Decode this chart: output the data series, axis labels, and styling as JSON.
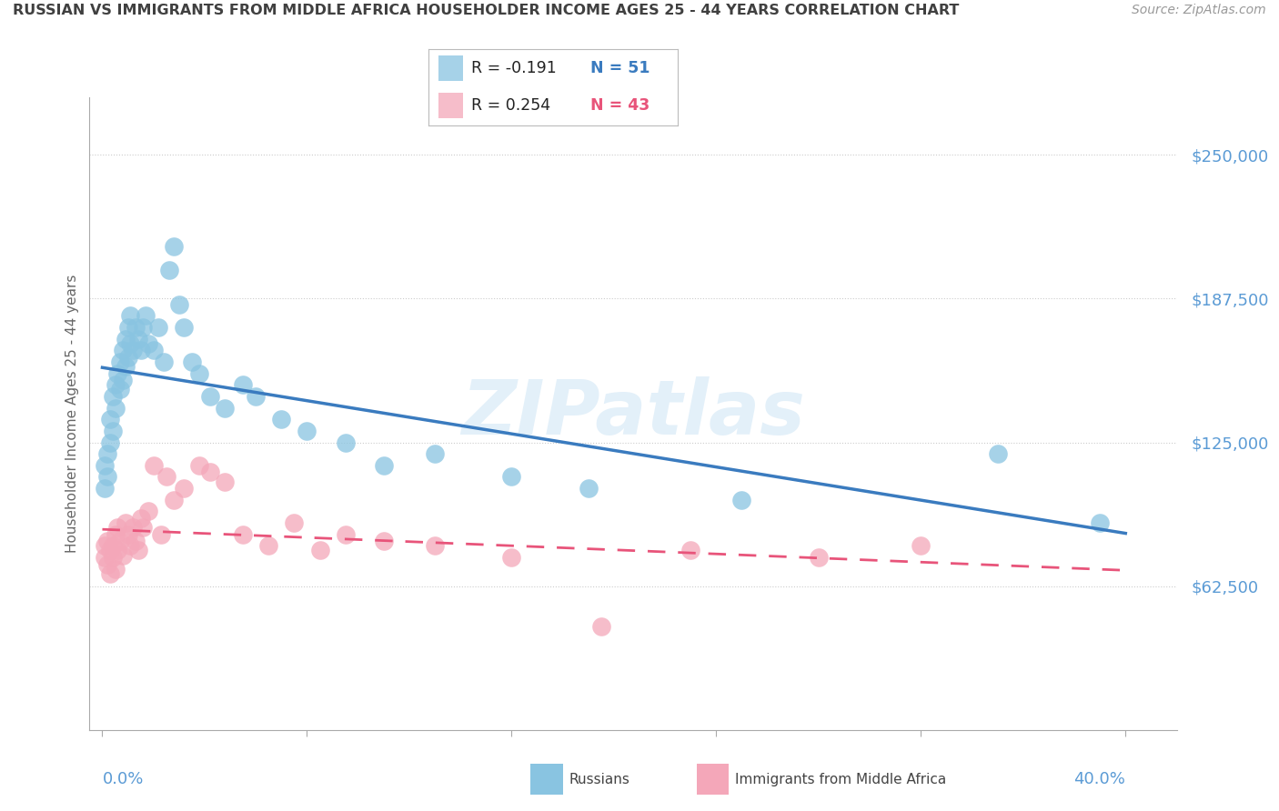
{
  "title": "RUSSIAN VS IMMIGRANTS FROM MIDDLE AFRICA HOUSEHOLDER INCOME AGES 25 - 44 YEARS CORRELATION CHART",
  "source": "Source: ZipAtlas.com",
  "ylabel": "Householder Income Ages 25 - 44 years",
  "ytick_labels": [
    "$62,500",
    "$125,000",
    "$187,500",
    "$250,000"
  ],
  "ytick_values": [
    62500,
    125000,
    187500,
    250000
  ],
  "ymin": 0,
  "ymax": 275000,
  "xmin": -0.005,
  "xmax": 0.42,
  "watermark": "ZIPatlas",
  "legend_russian_R": "R = -0.191",
  "legend_russian_N": "N = 51",
  "legend_immigrant_R": "R = 0.254",
  "legend_immigrant_N": "N = 43",
  "russian_color": "#89c4e1",
  "immigrant_color": "#f4a7b9",
  "russian_line_color": "#3a7bbf",
  "immigrant_line_color": "#e8547a",
  "axis_color": "#5b9bd5",
  "title_color": "#404040",
  "russian_scatter_x": [
    0.001,
    0.001,
    0.002,
    0.002,
    0.003,
    0.003,
    0.004,
    0.004,
    0.005,
    0.005,
    0.006,
    0.007,
    0.007,
    0.008,
    0.008,
    0.009,
    0.009,
    0.01,
    0.01,
    0.011,
    0.011,
    0.012,
    0.013,
    0.014,
    0.015,
    0.016,
    0.017,
    0.018,
    0.02,
    0.022,
    0.024,
    0.026,
    0.028,
    0.03,
    0.032,
    0.035,
    0.038,
    0.042,
    0.048,
    0.055,
    0.06,
    0.07,
    0.08,
    0.095,
    0.11,
    0.13,
    0.16,
    0.19,
    0.25,
    0.35,
    0.39
  ],
  "russian_scatter_y": [
    115000,
    105000,
    120000,
    110000,
    125000,
    135000,
    130000,
    145000,
    140000,
    150000,
    155000,
    148000,
    160000,
    152000,
    165000,
    158000,
    170000,
    162000,
    175000,
    168000,
    180000,
    165000,
    175000,
    170000,
    165000,
    175000,
    180000,
    168000,
    165000,
    175000,
    160000,
    200000,
    210000,
    185000,
    175000,
    160000,
    155000,
    145000,
    140000,
    150000,
    145000,
    135000,
    130000,
    125000,
    115000,
    120000,
    110000,
    105000,
    100000,
    120000,
    90000
  ],
  "immigrant_scatter_x": [
    0.001,
    0.001,
    0.002,
    0.002,
    0.003,
    0.003,
    0.004,
    0.004,
    0.005,
    0.005,
    0.006,
    0.006,
    0.007,
    0.008,
    0.009,
    0.01,
    0.011,
    0.012,
    0.013,
    0.014,
    0.015,
    0.016,
    0.018,
    0.02,
    0.023,
    0.025,
    0.028,
    0.032,
    0.038,
    0.042,
    0.048,
    0.055,
    0.065,
    0.075,
    0.085,
    0.095,
    0.11,
    0.13,
    0.16,
    0.195,
    0.23,
    0.28,
    0.32
  ],
  "immigrant_scatter_y": [
    80000,
    75000,
    82000,
    72000,
    78000,
    68000,
    80000,
    75000,
    85000,
    70000,
    78000,
    88000,
    82000,
    76000,
    90000,
    85000,
    80000,
    88000,
    82000,
    78000,
    92000,
    88000,
    95000,
    115000,
    85000,
    110000,
    100000,
    105000,
    115000,
    112000,
    108000,
    85000,
    80000,
    90000,
    78000,
    85000,
    82000,
    80000,
    75000,
    45000,
    78000,
    75000,
    80000
  ]
}
